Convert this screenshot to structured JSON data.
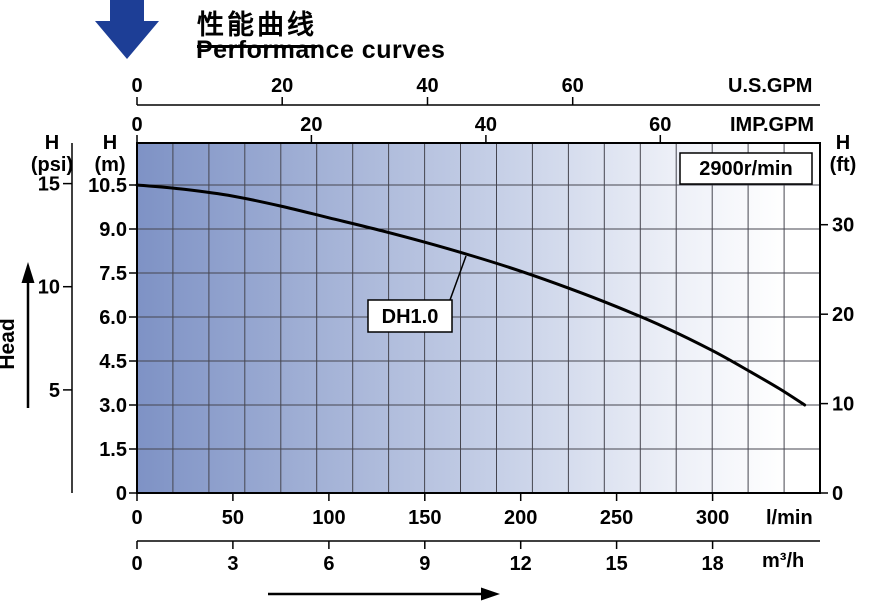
{
  "header": {
    "title_zh": "性能曲线",
    "title_en": "Performance curves"
  },
  "chart_data": {
    "type": "line",
    "title": "Performance curves",
    "grid": true,
    "speed_annotation": "2900r/min",
    "head_axis_label": "Head",
    "x_range_l_min": [
      0,
      356
    ],
    "y_range_m": [
      0,
      11.93
    ],
    "series": [
      {
        "name": "DH1.0",
        "x_l_min": [
          0,
          25,
          50,
          75,
          100,
          125,
          150,
          175,
          200,
          225,
          250,
          275,
          300,
          320,
          335,
          348
        ],
        "y_m": [
          10.5,
          10.35,
          10.12,
          9.78,
          9.38,
          8.98,
          8.55,
          8.08,
          7.56,
          6.98,
          6.35,
          5.65,
          4.85,
          4.12,
          3.55,
          3.0
        ]
      }
    ],
    "axes": {
      "top_us_gpm": {
        "unit": "U.S.GPM",
        "ticks": [
          0,
          20,
          40,
          60
        ]
      },
      "top_imp_gpm": {
        "unit": "IMP.GPM",
        "ticks": [
          0,
          20,
          40,
          60
        ]
      },
      "left_psi": {
        "name": "H",
        "unit": "(psi)",
        "ticks": [
          15,
          10,
          5
        ]
      },
      "left_m": {
        "name": "H",
        "unit": "(m)",
        "ticks": [
          10.5,
          9.0,
          7.5,
          6.0,
          4.5,
          3.0,
          1.5,
          0
        ]
      },
      "right_ft": {
        "name": "H",
        "unit": "(ft)",
        "ticks": [
          30,
          20,
          10,
          0
        ]
      },
      "bottom_l_min": {
        "unit": "l/min",
        "ticks": [
          0,
          50,
          100,
          150,
          200,
          250,
          300
        ]
      },
      "bottom_m3_h": {
        "unit": "m³/h",
        "ticks": [
          0,
          3,
          6,
          9,
          12,
          15,
          18
        ]
      }
    },
    "colors": {
      "arrow_blue": "#1d3e96",
      "curve": "#000000",
      "gradient_left": "#7e92c5",
      "gradient_right": "#ffffff"
    }
  }
}
